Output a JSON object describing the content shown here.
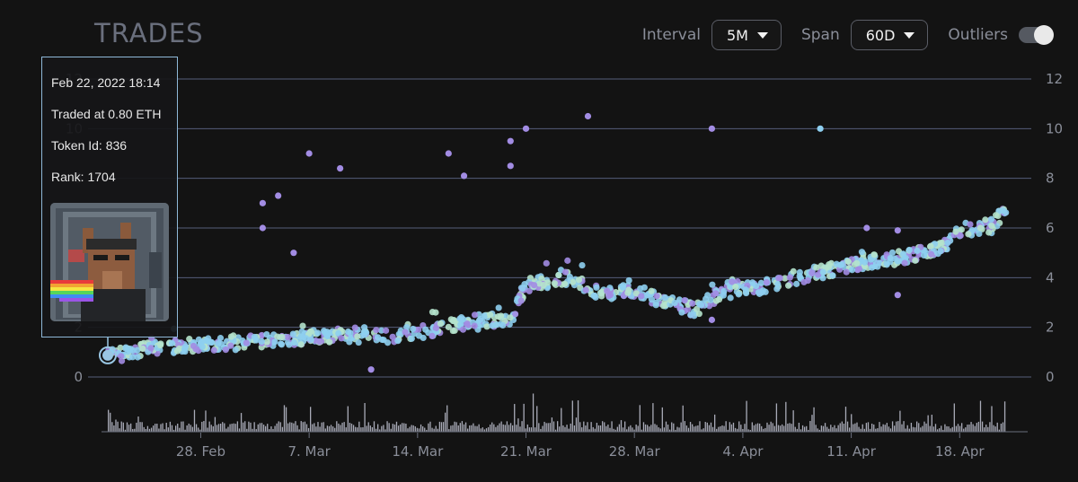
{
  "header": {
    "title": "TRADES"
  },
  "controls": {
    "interval_label": "Interval",
    "interval_value": "5M",
    "span_label": "Span",
    "span_value": "60D",
    "outliers_label": "Outliers"
  },
  "tooltip": {
    "date": "Feb 22, 2022 18:14",
    "traded": "Traded at 0.80 ETH",
    "token": "Token Id: 836",
    "rank": "Rank: 1704"
  },
  "colors": {
    "background": "#131313",
    "grid": "#545d7a",
    "point_purple": "#a28ce3",
    "point_blue": "#8ecff0",
    "point_mint": "#b5e3cc",
    "volume_bar": "#a9abb8",
    "highlight": "#9ac7e4"
  },
  "chart_data": {
    "type": "scatter",
    "x_type": "date",
    "x_range": [
      "2022-02-22",
      "2022-04-21"
    ],
    "ylim": [
      0,
      12
    ],
    "yticks": [
      0,
      2,
      4,
      6,
      8,
      10,
      12
    ],
    "xticks": [
      {
        "label": "28. Feb",
        "date": "2022-02-28"
      },
      {
        "label": "7. Mar",
        "date": "2022-03-07"
      },
      {
        "label": "14. Mar",
        "date": "2022-03-14"
      },
      {
        "label": "21. Mar",
        "date": "2022-03-21"
      },
      {
        "label": "28. Mar",
        "date": "2022-03-28"
      },
      {
        "label": "4. Apr",
        "date": "2022-04-04"
      },
      {
        "label": "11. Apr",
        "date": "2022-04-11"
      },
      {
        "label": "18. Apr",
        "date": "2022-04-18"
      }
    ],
    "grid": true,
    "trend_anchors": [
      {
        "date": "2022-02-22",
        "price": 0.8
      },
      {
        "date": "2022-02-25",
        "price": 1.2
      },
      {
        "date": "2022-03-01",
        "price": 1.3
      },
      {
        "date": "2022-03-05",
        "price": 1.5
      },
      {
        "date": "2022-03-09",
        "price": 1.7
      },
      {
        "date": "2022-03-12",
        "price": 1.6
      },
      {
        "date": "2022-03-15",
        "price": 1.9
      },
      {
        "date": "2022-03-18",
        "price": 2.3
      },
      {
        "date": "2022-03-20",
        "price": 2.3
      },
      {
        "date": "2022-03-21",
        "price": 3.7
      },
      {
        "date": "2022-03-24",
        "price": 4.0
      },
      {
        "date": "2022-03-26",
        "price": 3.3
      },
      {
        "date": "2022-03-28",
        "price": 3.5
      },
      {
        "date": "2022-03-30",
        "price": 3.0
      },
      {
        "date": "2022-04-01",
        "price": 2.7
      },
      {
        "date": "2022-04-03",
        "price": 3.6
      },
      {
        "date": "2022-04-05",
        "price": 3.6
      },
      {
        "date": "2022-04-08",
        "price": 4.1
      },
      {
        "date": "2022-04-11",
        "price": 4.5
      },
      {
        "date": "2022-04-15",
        "price": 4.9
      },
      {
        "date": "2022-04-17",
        "price": 5.2
      },
      {
        "date": "2022-04-18",
        "price": 5.9
      },
      {
        "date": "2022-04-20",
        "price": 6.1
      },
      {
        "date": "2022-04-21",
        "price": 6.7
      }
    ],
    "outlier_points": [
      {
        "date": "2022-02-22",
        "price": 4.8
      },
      {
        "date": "2022-02-23",
        "price": 4.0
      },
      {
        "date": "2022-03-04",
        "price": 6.0
      },
      {
        "date": "2022-03-04",
        "price": 7.0
      },
      {
        "date": "2022-03-05",
        "price": 7.3
      },
      {
        "date": "2022-03-06",
        "price": 5.0
      },
      {
        "date": "2022-03-07",
        "price": 9.0
      },
      {
        "date": "2022-03-09",
        "price": 8.4
      },
      {
        "date": "2022-03-16",
        "price": 9.0
      },
      {
        "date": "2022-03-17",
        "price": 8.1
      },
      {
        "date": "2022-03-20",
        "price": 8.5
      },
      {
        "date": "2022-03-20",
        "price": 9.5
      },
      {
        "date": "2022-03-21",
        "price": 10.0
      },
      {
        "date": "2022-03-25",
        "price": 10.5
      },
      {
        "date": "2022-04-02",
        "price": 10.0
      },
      {
        "date": "2022-04-09",
        "price": 10.0
      },
      {
        "date": "2022-03-11",
        "price": 0.3
      },
      {
        "date": "2022-04-02",
        "price": 2.3
      },
      {
        "date": "2022-04-12",
        "price": 6.0
      },
      {
        "date": "2022-04-14",
        "price": 5.9
      },
      {
        "date": "2022-04-14",
        "price": 3.3
      }
    ],
    "highlighted_point": {
      "date": "2022-02-22",
      "price": 0.8
    }
  }
}
